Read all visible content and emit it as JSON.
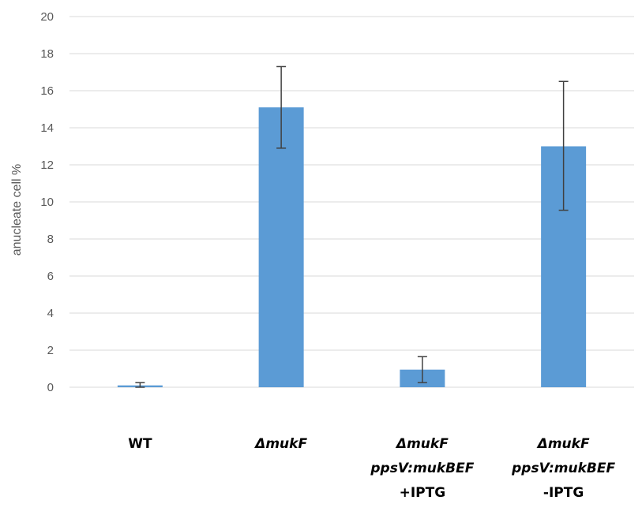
{
  "chart_data": {
    "type": "bar",
    "ylabel": "anucleate cell %",
    "xlabel": "",
    "ylim": [
      0,
      20
    ],
    "yticks": [
      0,
      2,
      4,
      6,
      8,
      10,
      12,
      14,
      16,
      18,
      20
    ],
    "grid": true,
    "bar_color": "#5B9BD5",
    "gridline_color": "#D9D9D9",
    "errorbar_color": "#404040",
    "categories": [
      {
        "lines": [
          {
            "segments": [
              {
                "text": "WT",
                "italic": false
              }
            ]
          }
        ]
      },
      {
        "lines": [
          {
            "segments": [
              {
                "text": "Δ",
                "italic": true
              },
              {
                "text": "mukF",
                "italic": true
              }
            ]
          }
        ]
      },
      {
        "lines": [
          {
            "segments": [
              {
                "text": "Δ",
                "italic": true
              },
              {
                "text": "mukF",
                "italic": true
              }
            ]
          },
          {
            "segments": [
              {
                "text": "ppsV:mukBEF",
                "italic": true
              }
            ]
          },
          {
            "segments": [
              {
                "text": "+IPTG",
                "italic": false
              }
            ]
          }
        ]
      },
      {
        "lines": [
          {
            "segments": [
              {
                "text": "Δ",
                "italic": true
              },
              {
                "text": "mukF",
                "italic": true
              }
            ]
          },
          {
            "segments": [
              {
                "text": "ppsV:mukBEF",
                "italic": true
              }
            ]
          },
          {
            "segments": [
              {
                "text": "-IPTG",
                "italic": false
              }
            ]
          }
        ]
      }
    ],
    "values": [
      0.1,
      15.1,
      0.95,
      13.0
    ],
    "error_low": [
      0.0,
      12.9,
      0.25,
      9.55
    ],
    "error_high": [
      0.25,
      17.3,
      1.65,
      16.5
    ]
  }
}
